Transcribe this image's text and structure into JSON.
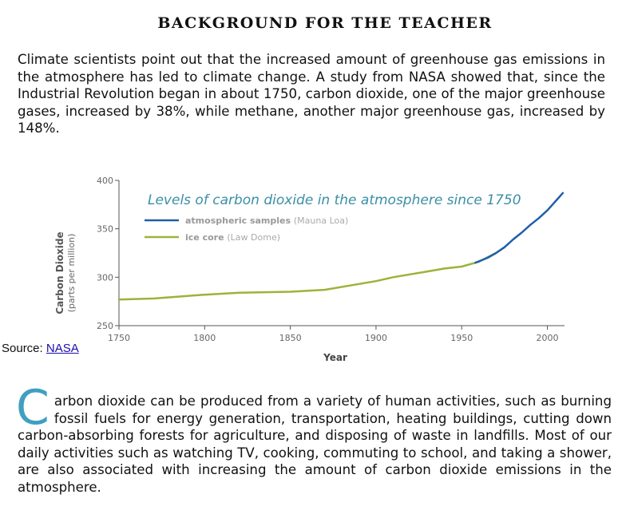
{
  "heading": "BACKGROUND FOR THE TEACHER",
  "paragraph1": "Climate scientists point out that the increased amount of greenhouse gas emissions in the atmosphere has led to climate change. A study from NASA showed that, since the Industrial Revolution began in about 1750, carbon dioxide, one of the major greenhouse gases, increased by 38%, while methane, another major greenhouse gas, increased by 148%.",
  "source": {
    "label": "Source: ",
    "link_text": "NASA"
  },
  "paragraph2": {
    "dropcap": "C",
    "text": "arbon dioxide can be produced from a variety of human activities, such as burning fossil fuels for energy generation, transportation, heating buildings, cutting down carbon-absorbing forests for agriculture, and disposing of waste in landfills. Most of our daily activities such as watching TV, cooking, commuting to school, and taking a shower, are also associated with increasing the amount of carbon dioxide emissions in the atmosphere."
  },
  "colors": {
    "dropcap": "#3f9fc2",
    "title": "#3a8fa6",
    "atmospheric": "#1f5fa8",
    "icecore": "#9bb33a"
  },
  "chart_data": {
    "type": "line",
    "title": "Levels of carbon dioxide in the atmosphere since 1750",
    "xlabel": "Year",
    "ylabel": "Carbon Dioxide",
    "ylabel_sub": "(parts per million)",
    "xlim": [
      1750,
      2010
    ],
    "ylim": [
      250,
      400
    ],
    "xticks": [
      1750,
      1800,
      1850,
      1900,
      1950,
      2000
    ],
    "yticks": [
      250,
      300,
      350,
      400
    ],
    "grid": false,
    "legend_position": "top-left",
    "series": [
      {
        "name": "atmospheric samples",
        "sub": "(Mauna Loa)",
        "color": "#1f5fa8",
        "points": [
          [
            1958,
            315
          ],
          [
            1965,
            320
          ],
          [
            1970,
            325
          ],
          [
            1975,
            331
          ],
          [
            1980,
            339
          ],
          [
            1985,
            346
          ],
          [
            1990,
            354
          ],
          [
            1995,
            361
          ],
          [
            2000,
            369
          ],
          [
            2005,
            379
          ],
          [
            2009,
            387
          ]
        ]
      },
      {
        "name": "ice core",
        "sub": "(Law Dome)",
        "color": "#9bb33a",
        "points": [
          [
            1750,
            277
          ],
          [
            1770,
            278
          ],
          [
            1800,
            282
          ],
          [
            1820,
            284
          ],
          [
            1850,
            285
          ],
          [
            1870,
            287
          ],
          [
            1890,
            293
          ],
          [
            1900,
            296
          ],
          [
            1910,
            300
          ],
          [
            1920,
            303
          ],
          [
            1930,
            306
          ],
          [
            1940,
            309
          ],
          [
            1950,
            311
          ],
          [
            1960,
            316
          ],
          [
            1970,
            325
          ],
          [
            1975,
            331
          ]
        ]
      }
    ]
  }
}
